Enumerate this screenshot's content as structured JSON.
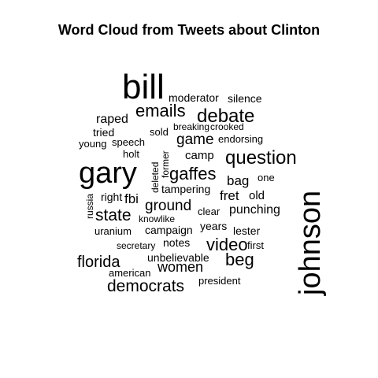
{
  "chart_data": {
    "type": "wordcloud",
    "title": "Word Cloud from Tweets about Clinton",
    "words": [
      {
        "text": "bill",
        "weight": 10
      },
      {
        "text": "johnson",
        "weight": 9
      },
      {
        "text": "gary",
        "weight": 8
      },
      {
        "text": "debate",
        "weight": 5
      },
      {
        "text": "question",
        "weight": 5
      },
      {
        "text": "emails",
        "weight": 4.5
      },
      {
        "text": "gaffes",
        "weight": 4.5
      },
      {
        "text": "video",
        "weight": 4.5
      },
      {
        "text": "florida",
        "weight": 4
      },
      {
        "text": "beg",
        "weight": 4
      },
      {
        "text": "democrats",
        "weight": 4
      },
      {
        "text": "state",
        "weight": 4
      },
      {
        "text": "ground",
        "weight": 3.5
      },
      {
        "text": "game",
        "weight": 3.5
      },
      {
        "text": "women",
        "weight": 3.5
      },
      {
        "text": "fret",
        "weight": 3
      },
      {
        "text": "punching",
        "weight": 3
      },
      {
        "text": "bag",
        "weight": 3
      },
      {
        "text": "raped",
        "weight": 3
      },
      {
        "text": "fbi",
        "weight": 3
      },
      {
        "text": "moderator",
        "weight": 2.5
      },
      {
        "text": "silence",
        "weight": 2.5
      },
      {
        "text": "tried",
        "weight": 2.5
      },
      {
        "text": "camp",
        "weight": 2.5
      },
      {
        "text": "endorsing",
        "weight": 2
      },
      {
        "text": "sold",
        "weight": 2
      },
      {
        "text": "breaking",
        "weight": 2
      },
      {
        "text": "crooked",
        "weight": 2
      },
      {
        "text": "young",
        "weight": 2
      },
      {
        "text": "speech",
        "weight": 2
      },
      {
        "text": "holt",
        "weight": 2
      },
      {
        "text": "former",
        "weight": 2
      },
      {
        "text": "deleted",
        "weight": 2
      },
      {
        "text": "one",
        "weight": 2
      },
      {
        "text": "tampering",
        "weight": 2.5
      },
      {
        "text": "right",
        "weight": 2.5
      },
      {
        "text": "old",
        "weight": 2.5
      },
      {
        "text": "russia",
        "weight": 2
      },
      {
        "text": "knowlike",
        "weight": 2
      },
      {
        "text": "clear",
        "weight": 2
      },
      {
        "text": "uranium",
        "weight": 2
      },
      {
        "text": "campaign",
        "weight": 2.5
      },
      {
        "text": "years",
        "weight": 2.5
      },
      {
        "text": "lester",
        "weight": 2
      },
      {
        "text": "notes",
        "weight": 2.5
      },
      {
        "text": "secretary",
        "weight": 2
      },
      {
        "text": "first",
        "weight": 2
      },
      {
        "text": "unbelievable",
        "weight": 2.5
      },
      {
        "text": "american",
        "weight": 2
      },
      {
        "text": "president",
        "weight": 2
      }
    ]
  }
}
